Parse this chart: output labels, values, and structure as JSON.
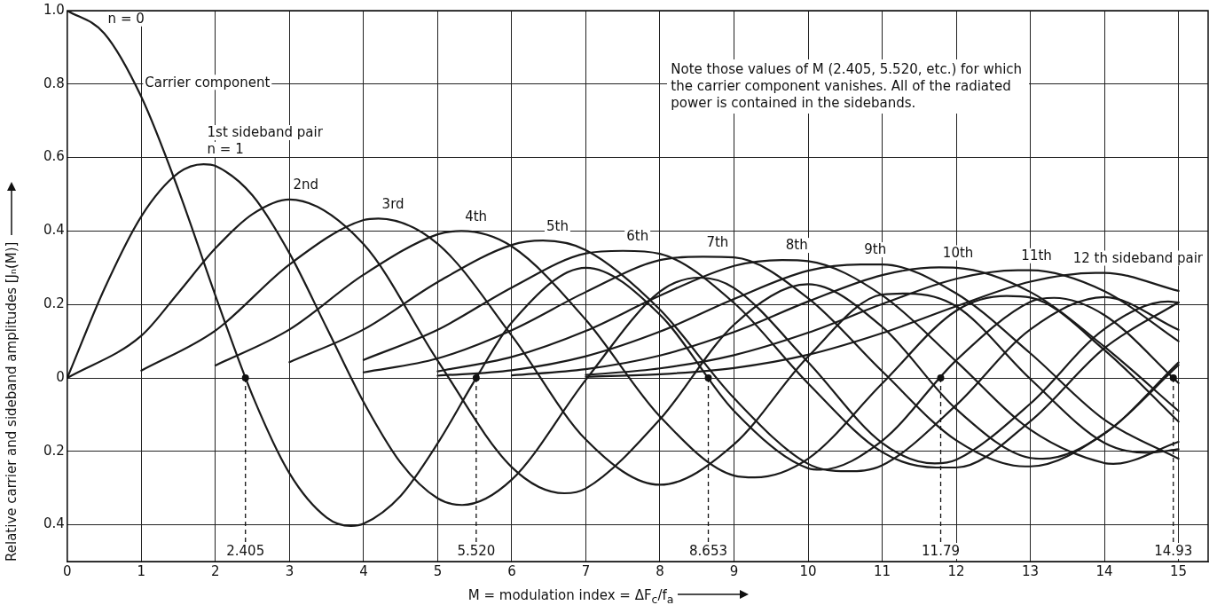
{
  "chart_data": {
    "type": "line",
    "xlabel": "M = modulation index = ΔF$_{c}$/f$_{a}$",
    "ylabel": "Relative carrier and sideband amplitudes [Jₙ(M)]",
    "xlim": [
      0,
      15.4
    ],
    "xticks": [
      0,
      1,
      2,
      3,
      4,
      5,
      6,
      7,
      8,
      9,
      10,
      11,
      12,
      13,
      14,
      15
    ],
    "ylim": [
      -0.5,
      1.0
    ],
    "yticks": [
      {
        "value": -0.4,
        "label": "0.4"
      },
      {
        "value": -0.2,
        "label": "0.2"
      },
      0,
      {
        "value": 0.2,
        "label": "0.2"
      },
      {
        "value": 0.4,
        "label": "0.4"
      },
      {
        "value": 0.6,
        "label": "0.6"
      },
      {
        "value": 0.8,
        "label": "0.8"
      },
      {
        "value": 1.0,
        "label": "1.0"
      }
    ],
    "grid": true,
    "legend": false,
    "marker": "none",
    "line_style": "solid",
    "series": [
      {
        "color": "#1a1a1a",
        "x": [
          0,
          0.5,
          1,
          1.5,
          2,
          2.5,
          3,
          3.5,
          3.83,
          4,
          4.5,
          5,
          5.5,
          6,
          7,
          8,
          9,
          10,
          10.17,
          11,
          12,
          13,
          13.32,
          14,
          15
        ],
        "values": [
          1,
          0.938,
          0.765,
          0.512,
          0.224,
          -0.048,
          -0.26,
          -0.38,
          -0.403,
          -0.397,
          -0.321,
          -0.178,
          -0.007,
          0.151,
          0.3,
          0.172,
          -0.09,
          -0.246,
          -0.25,
          -0.171,
          0.048,
          0.207,
          0.218,
          0.171,
          -0.014
        ]
      },
      {
        "color": "#1a1a1a",
        "x": [
          0,
          0.5,
          1,
          1.5,
          1.84,
          2,
          2.5,
          3,
          3.5,
          4,
          4.5,
          5,
          5.33,
          6,
          7,
          8,
          8.54,
          9,
          10,
          11,
          11.71,
          12,
          13,
          14,
          14.86,
          15
        ],
        "values": [
          0,
          0.242,
          0.44,
          0.558,
          0.582,
          0.577,
          0.497,
          0.339,
          0.137,
          -0.066,
          -0.231,
          -0.328,
          -0.346,
          -0.277,
          -0.005,
          0.235,
          0.273,
          0.245,
          0.043,
          -0.177,
          -0.233,
          -0.223,
          -0.07,
          0.133,
          0.208,
          0.205
        ]
      },
      {
        "color": "#1a1a1a",
        "x": [
          0,
          1,
          1.5,
          2,
          2.5,
          3,
          4,
          5,
          6,
          6.71,
          7,
          8,
          9,
          10,
          11,
          12,
          13,
          13.17,
          14,
          15
        ],
        "values": [
          0,
          0.115,
          0.232,
          0.353,
          0.446,
          0.486,
          0.364,
          0.047,
          -0.243,
          -0.314,
          -0.301,
          -0.113,
          0.145,
          0.255,
          0.139,
          -0.085,
          -0.218,
          -0.22,
          -0.152,
          0.042
        ]
      },
      {
        "color": "#1a1a1a",
        "x": [
          1,
          2,
          3,
          4,
          4.2,
          5,
          6,
          7,
          8,
          9,
          10,
          11,
          11.35,
          12,
          13,
          14,
          14.59,
          15
        ],
        "values": [
          0.02,
          0.129,
          0.309,
          0.43,
          0.434,
          0.365,
          0.115,
          -0.168,
          -0.291,
          -0.181,
          0.058,
          0.227,
          0.23,
          0.195,
          -0.003,
          -0.177,
          -0.204,
          -0.194
        ]
      },
      {
        "color": "#1a1a1a",
        "x": [
          2,
          3,
          4,
          5,
          5.32,
          6,
          7,
          8,
          9,
          9.28,
          10,
          11,
          12,
          12.68,
          13,
          14,
          15
        ],
        "values": [
          0.034,
          0.132,
          0.281,
          0.391,
          0.4,
          0.358,
          0.158,
          -0.105,
          -0.266,
          -0.271,
          -0.22,
          -0.015,
          0.183,
          0.223,
          0.219,
          0.076,
          -0.119
        ]
      },
      {
        "color": "#1a1a1a",
        "x": [
          3,
          4,
          5,
          6,
          6.42,
          7,
          8,
          9,
          10,
          10.52,
          11,
          12,
          13,
          14,
          15
        ],
        "values": [
          0.043,
          0.132,
          0.261,
          0.362,
          0.374,
          0.348,
          0.186,
          -0.055,
          -0.234,
          -0.254,
          -0.238,
          -0.074,
          0.132,
          0.22,
          0.131
        ]
      },
      {
        "color": "#1a1a1a",
        "x": [
          4,
          5,
          6,
          7,
          7.5,
          8,
          9,
          10,
          11,
          11.73,
          12,
          13,
          14,
          15
        ],
        "values": [
          0.049,
          0.131,
          0.246,
          0.339,
          0.346,
          0.338,
          0.204,
          -0.015,
          -0.202,
          -0.244,
          -0.244,
          -0.118,
          0.081,
          0.206
        ]
      },
      {
        "color": "#1a1a1a",
        "x": [
          4,
          5,
          6,
          7,
          8,
          8.58,
          9,
          10,
          11,
          12,
          12.93,
          13,
          14,
          15
        ],
        "values": [
          0.015,
          0.053,
          0.13,
          0.234,
          0.321,
          0.33,
          0.328,
          0.217,
          0.018,
          -0.17,
          -0.241,
          -0.241,
          -0.151,
          0.035
        ]
      },
      {
        "color": "#1a1a1a",
        "x": [
          5,
          6,
          7,
          8,
          9,
          9.65,
          10,
          11,
          12,
          13,
          14,
          14.12,
          15
        ],
        "values": [
          0.018,
          0.057,
          0.128,
          0.224,
          0.305,
          0.321,
          0.318,
          0.225,
          0.045,
          -0.141,
          -0.232,
          -0.234,
          -0.174
        ]
      },
      {
        "color": "#1a1a1a",
        "x": [
          5,
          6,
          7,
          8,
          9,
          10,
          10.71,
          11,
          12,
          13,
          14,
          15
        ],
        "values": [
          0.006,
          0.021,
          0.059,
          0.126,
          0.215,
          0.292,
          0.309,
          0.309,
          0.23,
          0.067,
          -0.114,
          -0.22
        ]
      },
      {
        "color": "#1a1a1a",
        "x": [
          6,
          7,
          8,
          9,
          10,
          11,
          11.77,
          12,
          13,
          14,
          15
        ],
        "values": [
          0.007,
          0.024,
          0.061,
          0.125,
          0.208,
          0.28,
          0.301,
          0.3,
          0.234,
          0.085,
          -0.09
        ]
      },
      {
        "color": "#1a1a1a",
        "x": [
          7,
          8,
          9,
          10,
          11,
          12,
          12.83,
          13,
          14,
          15
        ],
        "values": [
          0.008,
          0.026,
          0.062,
          0.123,
          0.201,
          0.27,
          0.293,
          0.293,
          0.236,
          0.1
        ]
      },
      {
        "color": "#1a1a1a",
        "x": [
          7,
          8,
          9,
          10,
          11,
          12,
          13,
          13.88,
          14,
          15
        ],
        "values": [
          0.003,
          0.01,
          0.027,
          0.063,
          0.122,
          0.195,
          0.262,
          0.286,
          0.286,
          0.237
        ]
      }
    ],
    "annotations": [
      {
        "text": "n = 0",
        "x": 0.5,
        "y": 0.938
      },
      {
        "text": "Carrier component",
        "x": 1,
        "y": 0.765
      },
      {
        "text": "1st sideband pair",
        "x": 1.84,
        "y": 0.582
      },
      {
        "text": "n = 1",
        "x": 1.84,
        "y": 0.582
      },
      {
        "text": "2nd",
        "x": 3,
        "y": 0.486
      },
      {
        "text": "3rd",
        "x": 4.2,
        "y": 0.434
      },
      {
        "text": "4th",
        "x": 5.32,
        "y": 0.4
      },
      {
        "text": "5th",
        "x": 6.42,
        "y": 0.374
      },
      {
        "text": "6th",
        "x": 7.5,
        "y": 0.346
      },
      {
        "text": "7th",
        "x": 8.58,
        "y": 0.33
      },
      {
        "text": "8th",
        "x": 9.65,
        "y": 0.321
      },
      {
        "text": "9th",
        "x": 10.71,
        "y": 0.309
      },
      {
        "text": "10th",
        "x": 11.77,
        "y": 0.301
      },
      {
        "text": "11th",
        "x": 12.83,
        "y": 0.293
      },
      {
        "text": "12 th sideband pair",
        "x": 13.88,
        "y": 0.286
      },
      "Note those values of M (2.405, 5.520, etc.) for which the carrier component vanishes. All of the radiated power is contained in the sidebands.",
      {
        "text": "2.405",
        "x": 2.405,
        "y": 0
      },
      {
        "text": "5.520",
        "x": 5.52,
        "y": 0
      },
      {
        "text": "8.653",
        "x": 8.653,
        "y": 0
      },
      {
        "text": "11.79",
        "x": 11.79,
        "y": 0
      },
      {
        "text": "14.93",
        "x": 14.93,
        "y": 0
      }
    ]
  }
}
